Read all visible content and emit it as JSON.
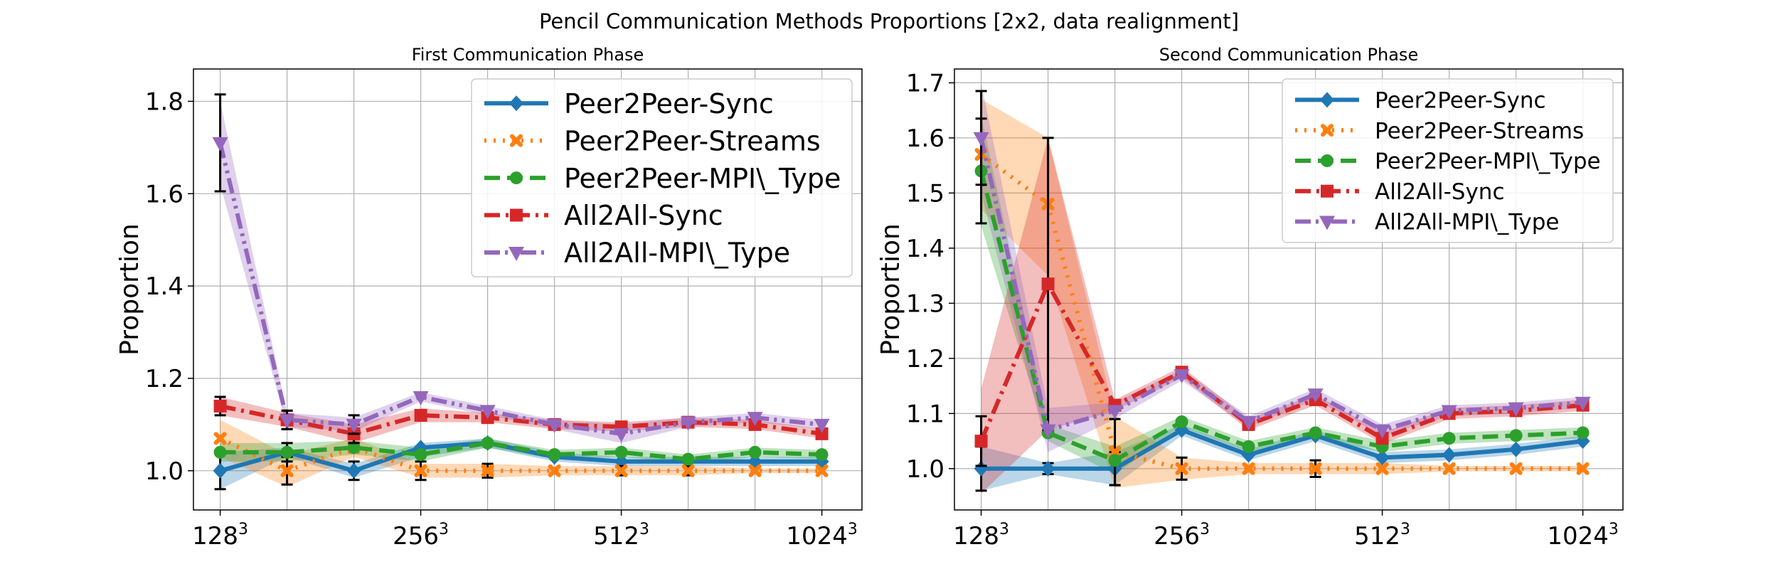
{
  "suptitle": "Pencil Communication Methods Proportions [2x2, data realignment]",
  "chart_data": [
    {
      "type": "line",
      "title": "First Communication Phase",
      "xlabel": "",
      "ylabel": "Proportion",
      "x_positions": [
        1,
        2,
        3,
        4,
        5,
        6,
        7,
        8,
        9,
        10,
        11
      ],
      "x_ticks": [
        {
          "pos": 1,
          "base": "128",
          "exp": "3"
        },
        {
          "pos": 4,
          "base": "256",
          "exp": "3"
        },
        {
          "pos": 7,
          "base": "512",
          "exp": "3"
        },
        {
          "pos": 10,
          "base": "1024",
          "exp": "3"
        }
      ],
      "xlim": [
        0.6,
        10.6
      ],
      "ylim": [
        0.915,
        1.87
      ],
      "y_ticks": [
        1.0,
        1.2,
        1.4,
        1.6,
        1.8
      ],
      "grid": true,
      "legend_position": "top-right",
      "legend_font": 38,
      "series": [
        {
          "name": "Peer2Peer-Sync",
          "color": "#1f77b4",
          "marker": "diamond",
          "dash": "solid",
          "x": [
            1,
            2,
            3,
            4,
            5,
            6,
            7,
            8,
            9,
            10
          ],
          "values": [
            1.0,
            1.04,
            1.0,
            1.05,
            1.06,
            1.03,
            1.02,
            1.02,
            1.02,
            1.02
          ],
          "band_low": [
            0.96,
            1.03,
            0.985,
            1.03,
            1.05,
            1.02,
            1.01,
            1.01,
            1.01,
            1.01
          ],
          "band_high": [
            1.04,
            1.05,
            1.015,
            1.06,
            1.07,
            1.04,
            1.03,
            1.03,
            1.03,
            1.03
          ],
          "err": [
            0.04,
            0,
            0.02,
            0,
            0,
            0,
            0,
            0,
            0,
            0
          ]
        },
        {
          "name": "Peer2Peer-Streams",
          "color": "#ff7f0e",
          "marker": "x",
          "dash": "dotted",
          "x": [
            1,
            2,
            3,
            4,
            5,
            6,
            7,
            8,
            9,
            10
          ],
          "values": [
            1.07,
            1.0,
            1.05,
            1.0,
            1.0,
            1.0,
            1.0,
            1.0,
            1.0,
            1.0
          ],
          "band_low": [
            1.03,
            0.965,
            1.03,
            0.985,
            0.985,
            0.99,
            0.99,
            0.99,
            0.995,
            0.995
          ],
          "band_high": [
            1.11,
            1.035,
            1.07,
            1.015,
            1.015,
            1.01,
            1.01,
            1.01,
            1.005,
            1.005
          ],
          "err": [
            0,
            0.03,
            0,
            0.02,
            0.015,
            0,
            0.01,
            0.01,
            0,
            0
          ]
        },
        {
          "name": "Peer2Peer-MPI\\_Type",
          "color": "#2ca02c",
          "marker": "circle",
          "dash": "dashed",
          "x": [
            1,
            2,
            3,
            4,
            5,
            6,
            7,
            8,
            9,
            10
          ],
          "values": [
            1.04,
            1.04,
            1.05,
            1.035,
            1.06,
            1.035,
            1.04,
            1.025,
            1.04,
            1.035
          ],
          "band_low": [
            1.02,
            1.02,
            1.035,
            1.02,
            1.05,
            1.025,
            1.03,
            1.015,
            1.03,
            1.025
          ],
          "band_high": [
            1.06,
            1.06,
            1.065,
            1.05,
            1.07,
            1.045,
            1.05,
            1.035,
            1.05,
            1.045
          ],
          "err": [
            0,
            0.02,
            0,
            0,
            0,
            0,
            0,
            0,
            0,
            0
          ]
        },
        {
          "name": "All2All-Sync",
          "color": "#d62728",
          "marker": "square",
          "dash": "dashdot",
          "x": [
            1,
            2,
            3,
            4,
            5,
            6,
            7,
            8,
            9,
            10
          ],
          "values": [
            1.14,
            1.11,
            1.08,
            1.12,
            1.115,
            1.1,
            1.095,
            1.105,
            1.1,
            1.08
          ],
          "band_low": [
            1.12,
            1.095,
            1.06,
            1.105,
            1.105,
            1.09,
            1.085,
            1.095,
            1.09,
            1.07
          ],
          "band_high": [
            1.16,
            1.125,
            1.1,
            1.135,
            1.125,
            1.11,
            1.105,
            1.115,
            1.11,
            1.09
          ],
          "err": [
            0.02,
            0.02,
            0.02,
            0,
            0,
            0,
            0.01,
            0,
            0,
            0
          ]
        },
        {
          "name": "All2All-MPI\\_Type",
          "color": "#9467bd",
          "marker": "triangle-down",
          "dash": "dashdotdot",
          "x": [
            1,
            2,
            3,
            4,
            5,
            6,
            7,
            8,
            9,
            10
          ],
          "values": [
            1.71,
            1.11,
            1.1,
            1.16,
            1.13,
            1.1,
            1.08,
            1.105,
            1.115,
            1.1
          ],
          "band_low": [
            1.62,
            1.095,
            1.085,
            1.15,
            1.12,
            1.09,
            1.06,
            1.095,
            1.105,
            1.09
          ],
          "band_high": [
            1.8,
            1.125,
            1.115,
            1.17,
            1.14,
            1.11,
            1.1,
            1.115,
            1.125,
            1.11
          ],
          "err": [
            0.105,
            0.02,
            0.02,
            0,
            0,
            0,
            0,
            0,
            0,
            0
          ]
        }
      ]
    },
    {
      "type": "line",
      "title": "Second Communication Phase",
      "xlabel": "",
      "ylabel": "Proportion",
      "x_positions": [
        1,
        2,
        3,
        4,
        5,
        6,
        7,
        8,
        9,
        10,
        11
      ],
      "x_ticks": [
        {
          "pos": 1,
          "base": "128",
          "exp": "3"
        },
        {
          "pos": 4,
          "base": "256",
          "exp": "3"
        },
        {
          "pos": 7,
          "base": "512",
          "exp": "3"
        },
        {
          "pos": 10,
          "base": "1024",
          "exp": "3"
        }
      ],
      "xlim": [
        0.6,
        10.6
      ],
      "ylim": [
        0.925,
        1.725
      ],
      "y_ticks": [
        1.0,
        1.1,
        1.2,
        1.3,
        1.4,
        1.5,
        1.6,
        1.7
      ],
      "grid": true,
      "legend_position": "top-right",
      "legend_font": 31,
      "series": [
        {
          "name": "Peer2Peer-Sync",
          "color": "#1f77b4",
          "marker": "diamond",
          "dash": "solid",
          "x": [
            1,
            2,
            3,
            4,
            5,
            6,
            7,
            8,
            9,
            10
          ],
          "values": [
            1.0,
            1.0,
            1.0,
            1.07,
            1.025,
            1.06,
            1.02,
            1.025,
            1.035,
            1.05
          ],
          "band_low": [
            0.96,
            0.99,
            0.97,
            1.06,
            1.015,
            1.05,
            1.01,
            1.015,
            1.025,
            1.04
          ],
          "band_high": [
            1.04,
            1.01,
            1.03,
            1.08,
            1.035,
            1.07,
            1.03,
            1.035,
            1.045,
            1.06
          ],
          "err": [
            0.04,
            0.01,
            0.03,
            0,
            0,
            0,
            0,
            0,
            0,
            0
          ]
        },
        {
          "name": "Peer2Peer-Streams",
          "color": "#ff7f0e",
          "marker": "x",
          "dash": "dotted",
          "x": [
            1,
            2,
            3,
            4,
            5,
            6,
            7,
            8,
            9,
            10
          ],
          "values": [
            1.57,
            1.48,
            1.03,
            1.0,
            1.0,
            1.0,
            1.0,
            1.0,
            1.0,
            1.0
          ],
          "band_low": [
            1.47,
            1.35,
            0.965,
            0.98,
            0.99,
            0.99,
            0.99,
            0.995,
            0.995,
            0.995
          ],
          "band_high": [
            1.67,
            1.6,
            1.095,
            1.02,
            1.01,
            1.01,
            1.01,
            1.005,
            1.005,
            1.005
          ],
          "err": [
            0,
            0,
            0.06,
            0.02,
            0,
            0.015,
            0,
            0,
            0,
            0
          ]
        },
        {
          "name": "Peer2Peer-MPI\\_Type",
          "color": "#2ca02c",
          "marker": "circle",
          "dash": "dashed",
          "x": [
            1,
            2,
            3,
            4,
            5,
            6,
            7,
            8,
            9,
            10
          ],
          "values": [
            1.54,
            1.065,
            1.015,
            1.085,
            1.04,
            1.065,
            1.04,
            1.055,
            1.06,
            1.065
          ],
          "band_low": [
            1.44,
            1.05,
            0.99,
            1.075,
            1.03,
            1.055,
            1.03,
            1.045,
            1.05,
            1.055
          ],
          "band_high": [
            1.64,
            1.08,
            1.04,
            1.095,
            1.05,
            1.075,
            1.05,
            1.065,
            1.07,
            1.075
          ],
          "err": [
            0.095,
            0,
            0,
            0,
            0,
            0,
            0,
            0,
            0,
            0
          ]
        },
        {
          "name": "All2All-Sync",
          "color": "#d62728",
          "marker": "square",
          "dash": "dashdot",
          "x": [
            1,
            2,
            3,
            4,
            5,
            6,
            7,
            8,
            9,
            10
          ],
          "values": [
            1.05,
            1.335,
            1.115,
            1.175,
            1.08,
            1.125,
            1.055,
            1.1,
            1.105,
            1.115
          ],
          "band_low": [
            0.955,
            1.07,
            1.105,
            1.165,
            1.07,
            1.115,
            1.045,
            1.09,
            1.095,
            1.105
          ],
          "band_high": [
            1.145,
            1.6,
            1.125,
            1.185,
            1.09,
            1.135,
            1.065,
            1.11,
            1.115,
            1.125
          ],
          "err": [
            0.045,
            0.265,
            0,
            0,
            0,
            0,
            0,
            0,
            0,
            0
          ]
        },
        {
          "name": "All2All-MPI\\_Type",
          "color": "#9467bd",
          "marker": "triangle-down",
          "dash": "dashdotdot",
          "x": [
            1,
            2,
            3,
            4,
            5,
            6,
            7,
            8,
            9,
            10
          ],
          "values": [
            1.6,
            1.07,
            1.105,
            1.17,
            1.085,
            1.135,
            1.07,
            1.105,
            1.11,
            1.12
          ],
          "band_low": [
            1.5,
            1.03,
            1.09,
            1.16,
            1.075,
            1.125,
            1.06,
            1.095,
            1.1,
            1.11
          ],
          "band_high": [
            1.7,
            1.11,
            1.12,
            1.18,
            1.095,
            1.145,
            1.08,
            1.115,
            1.12,
            1.13
          ],
          "err": [
            0.085,
            0,
            0,
            0,
            0,
            0,
            0,
            0,
            0,
            0
          ]
        }
      ]
    }
  ]
}
